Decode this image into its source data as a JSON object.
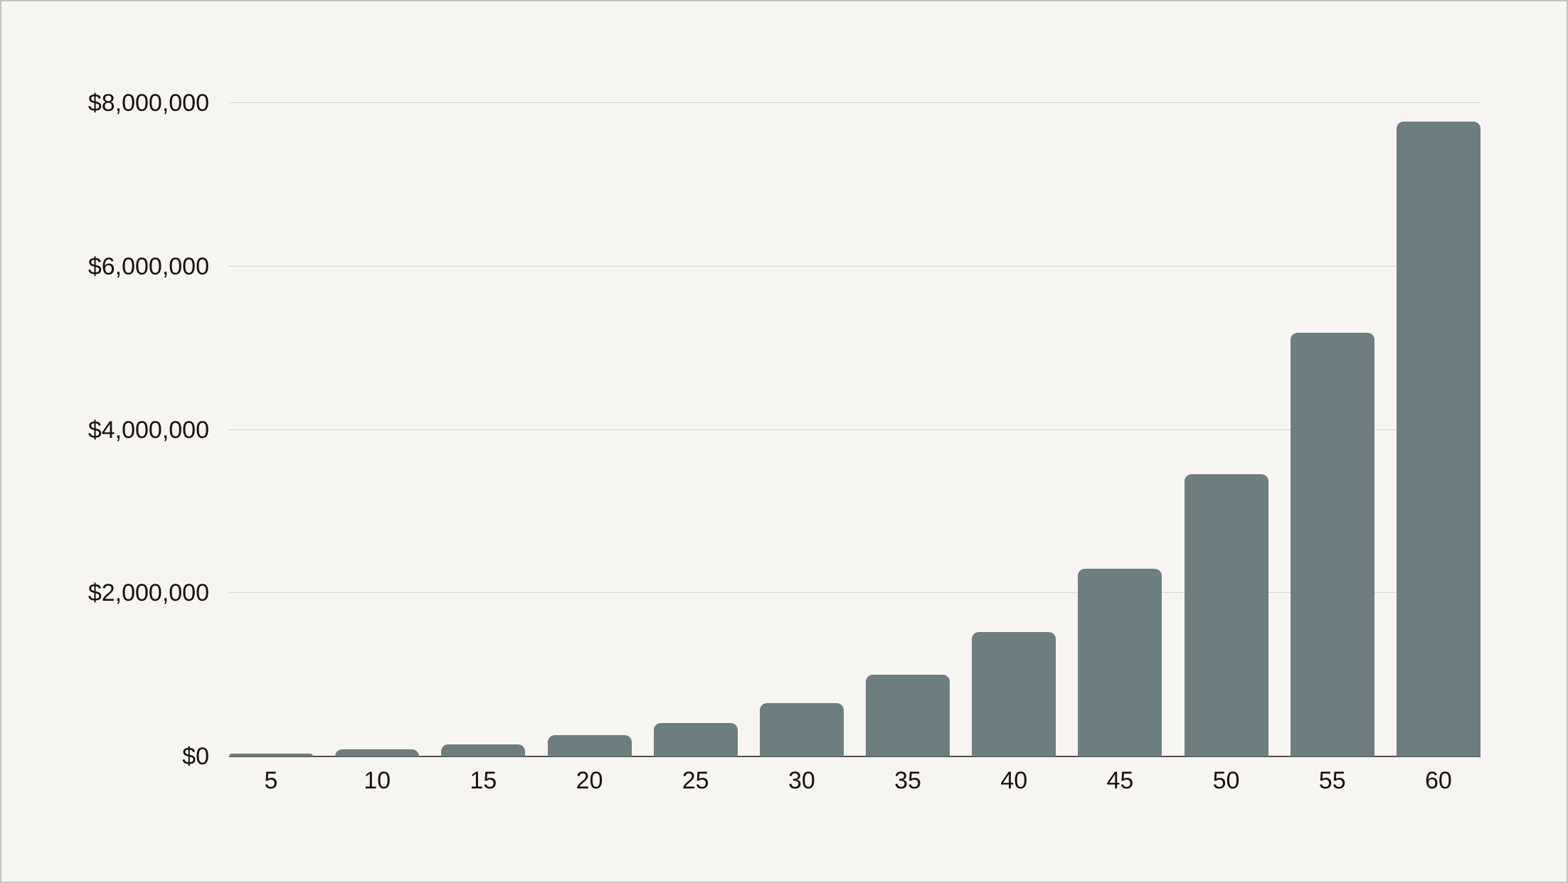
{
  "colors": {
    "background": "#f7f5f2",
    "frame_border": "#c5c3c0",
    "bar": "#6c7e7f",
    "gridline": "#d7d5d1",
    "axis_line": "#514d47",
    "label_text": "#16130e"
  },
  "chart_data": {
    "type": "bar",
    "title": "",
    "xlabel": "",
    "ylabel": "",
    "categories": [
      "5",
      "10",
      "15",
      "20",
      "25",
      "30",
      "35",
      "40",
      "45",
      "50",
      "55",
      "60"
    ],
    "values": [
      36000,
      85000,
      150000,
      260000,
      410000,
      655000,
      1000000,
      1525000,
      2300000,
      3460000,
      5190000,
      7770000
    ],
    "ylim": [
      0,
      8000000
    ],
    "yticks": [
      {
        "value": 0,
        "label": "$0"
      },
      {
        "value": 2000000,
        "label": "$2,000,000"
      },
      {
        "value": 4000000,
        "label": "$4,000,000"
      },
      {
        "value": 6000000,
        "label": "$6,000,000"
      },
      {
        "value": 8000000,
        "label": "$8,000,000"
      }
    ],
    "grid": true,
    "legend": false,
    "bar_corner_radius": 10
  }
}
